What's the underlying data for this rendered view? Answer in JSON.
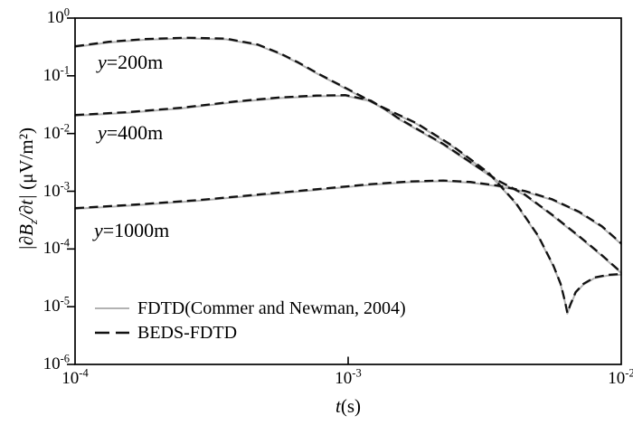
{
  "figure": {
    "background": "#ffffff",
    "frame_color": "#000000",
    "text_color": "#000000"
  },
  "chart_data": {
    "type": "line",
    "title": "",
    "x_axis": {
      "label": "t(s)",
      "scale": "log",
      "range": [
        0.0001,
        0.01
      ],
      "tick_exponents": [
        -4,
        -3,
        -2
      ],
      "tick_base": "10"
    },
    "y_axis": {
      "label": "|∂B_z/∂t| (μV/m²)",
      "scale": "log",
      "range": [
        1e-06,
        1
      ],
      "tick_exponents": [
        0,
        -1,
        -2,
        -3,
        -4,
        -5,
        -6
      ],
      "tick_base": "10"
    },
    "grid": false,
    "legend": {
      "position": "inside-bottom-left",
      "entries": [
        {
          "label": "FDTD(Commer and Newman, 2004)",
          "line_style": "solid",
          "color": "#b2b2b2"
        },
        {
          "label": "BEDS-FDTD",
          "line_style": "dashed",
          "color": "#111111"
        }
      ]
    },
    "annotations": [
      {
        "text": "y=200m",
        "t": 0.000121,
        "v": 0.263
      },
      {
        "text": "y=400m",
        "t": 0.000121,
        "v": 0.0158
      },
      {
        "text": "y=1000m",
        "t": 0.000117,
        "v": 0.000321
      }
    ],
    "note": "Each offset has two overlapping curves: FDTD (solid gray) and BEDS-FDTD (dashed black).",
    "series": [
      {
        "name": "y=200m",
        "t": [
          0.0001,
          0.000133,
          0.00018,
          0.000254,
          0.000357,
          0.000466,
          0.000565,
          0.000658,
          0.000797,
          0.000964,
          0.00131,
          0.00178,
          0.00241,
          0.00327,
          0.0041,
          0.00497,
          0.00565,
          0.006,
          0.00623,
          0.00635,
          0.00651,
          0.00681,
          0.00727,
          0.00797,
          0.00891,
          0.01
        ],
        "v": [
          0.315,
          0.377,
          0.42,
          0.444,
          0.428,
          0.339,
          0.236,
          0.165,
          0.0994,
          0.0623,
          0.0291,
          0.0147,
          0.00595,
          0.00203,
          0.000618,
          0.000163,
          4.96e-05,
          2.42e-05,
          1.18e-05,
          7.6e-06,
          1.05e-05,
          1.74e-05,
          2.42e-05,
          3.11e-05,
          3.45e-05,
          3.58e-05
        ]
      },
      {
        "name": "y=400m",
        "t": [
          0.0001,
          0.000154,
          0.000244,
          0.000386,
          0.000565,
          0.000766,
          0.000979,
          0.00121,
          0.00136,
          0.00152,
          0.00178,
          0.00223,
          0.0028,
          0.00352,
          0.00444,
          0.00557,
          0.00701,
          0.00849,
          0.01
        ],
        "v": [
          0.0203,
          0.0227,
          0.0271,
          0.0349,
          0.0411,
          0.0442,
          0.045,
          0.0362,
          0.0262,
          0.0182,
          0.0118,
          0.00641,
          0.00312,
          0.00151,
          0.00085,
          0.000385,
          0.000162,
          7.6e-05,
          3.82e-05
        ]
      },
      {
        "name": "y=1000m",
        "t": [
          0.0001,
          0.000167,
          0.000285,
          0.000486,
          0.000766,
          0.00121,
          0.0017,
          0.00223,
          0.0028,
          0.00352,
          0.00444,
          0.00557,
          0.00701,
          0.00849,
          0.01
        ],
        "v": [
          0.000495,
          0.000571,
          0.000684,
          0.000865,
          0.00105,
          0.00129,
          0.00144,
          0.00149,
          0.00141,
          0.00122,
          0.000981,
          0.00071,
          0.000428,
          0.000241,
          0.000121
        ]
      }
    ]
  }
}
